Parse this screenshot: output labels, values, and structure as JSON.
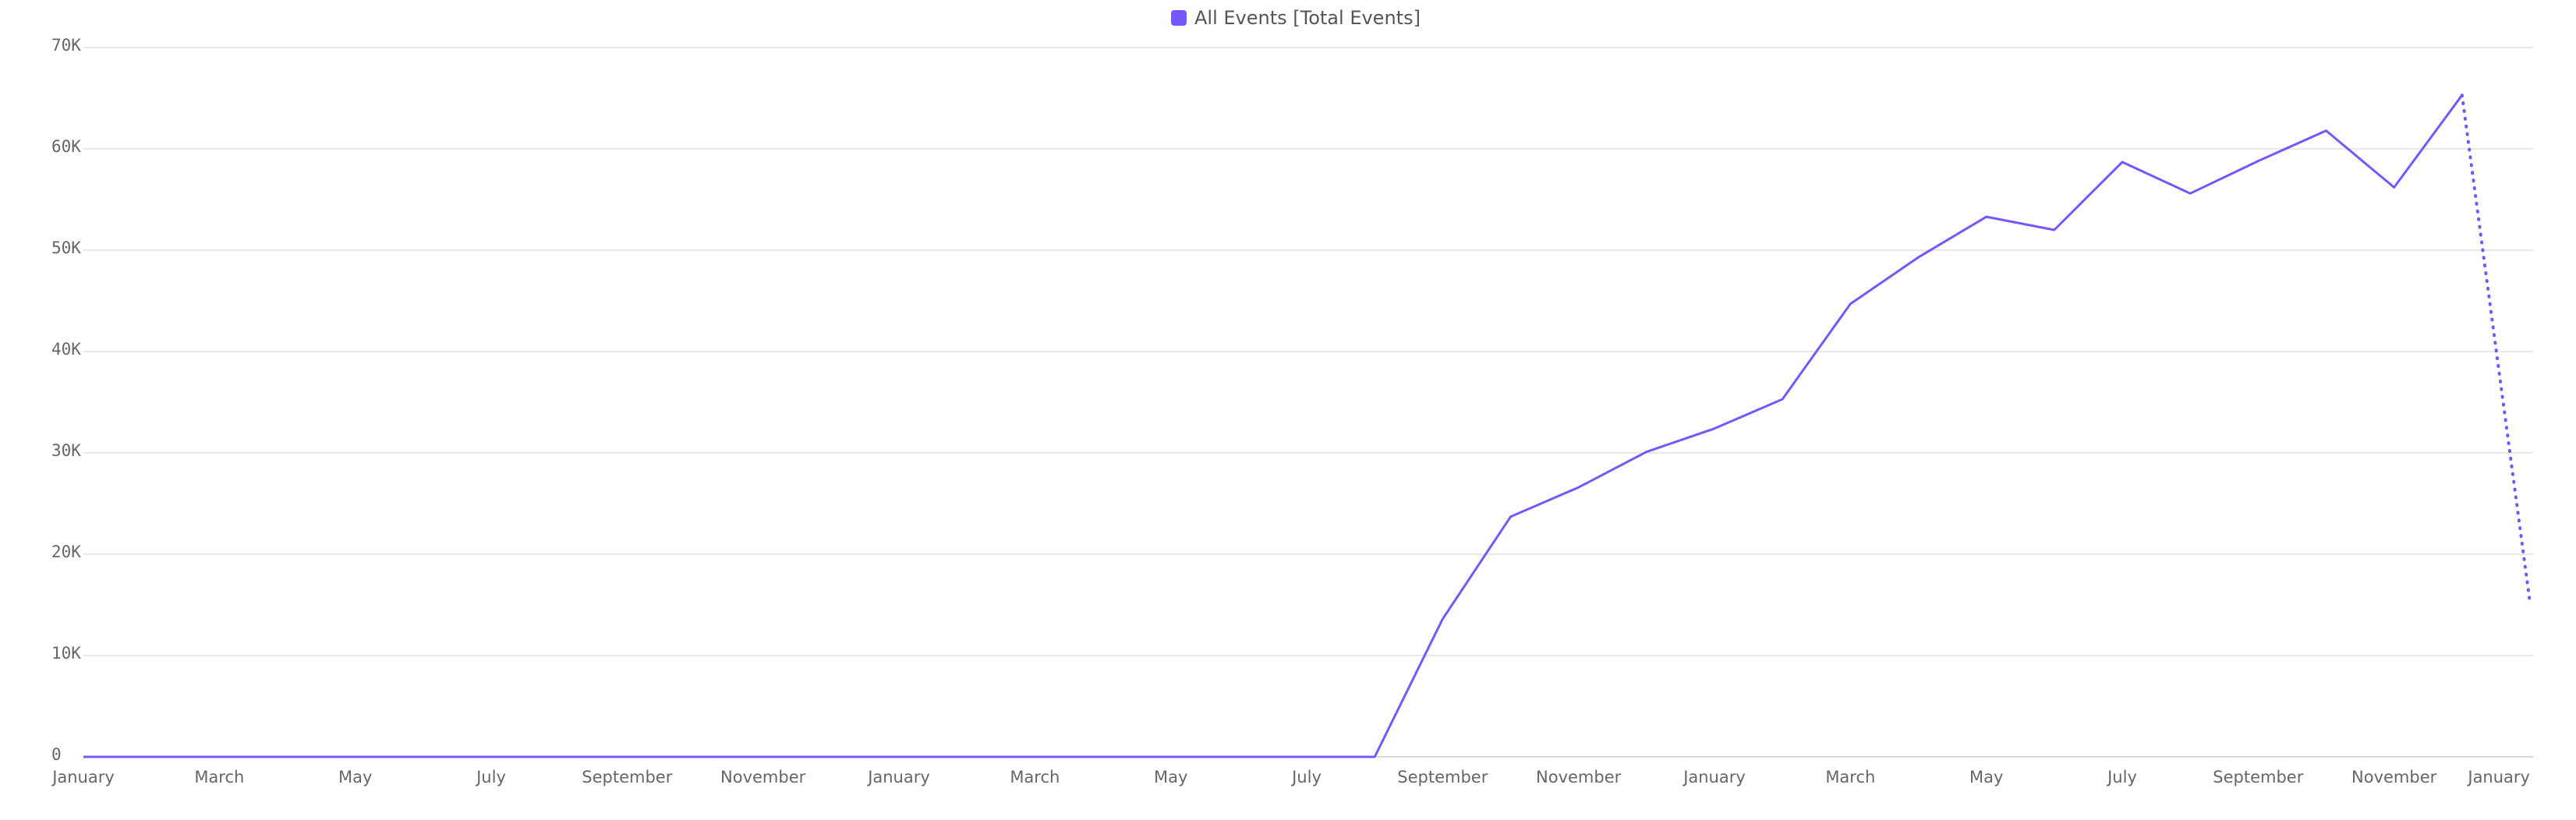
{
  "chart_data": {
    "type": "line",
    "categories": [
      "January",
      null,
      "March",
      null,
      "May",
      null,
      "July",
      null,
      "September",
      null,
      "November",
      null,
      "January",
      null,
      "March",
      null,
      "May",
      null,
      "July",
      null,
      "September",
      null,
      "November",
      null,
      "January",
      null,
      "March",
      null,
      "May",
      null,
      "July",
      null,
      "September",
      null,
      "November",
      null,
      "January"
    ],
    "series": [
      {
        "name": "All Events [Total Events]",
        "color": "#7856ff",
        "values": [
          0,
          0,
          0,
          0,
          0,
          0,
          0,
          0,
          0,
          0,
          0,
          0,
          0,
          0,
          0,
          0,
          0,
          0,
          0,
          0,
          13600,
          23700,
          26600,
          30100,
          32400,
          35300,
          44700,
          49300,
          53300,
          52000,
          58700,
          55600,
          58800,
          61800,
          56200,
          65300,
          15200
        ]
      }
    ],
    "last_segment_style": "dotted",
    "ylim": [
      0,
      70000
    ],
    "yticks": [
      0,
      {
        "value": 10000,
        "label": "10K"
      },
      {
        "value": 20000,
        "label": "20K"
      },
      {
        "value": 30000,
        "label": "30K"
      },
      {
        "value": 40000,
        "label": "40K"
      },
      {
        "value": 50000,
        "label": "50K"
      },
      {
        "value": 60000,
        "label": "60K"
      },
      {
        "value": 70000,
        "label": "70K"
      }
    ],
    "grid": true,
    "legend": "top"
  }
}
